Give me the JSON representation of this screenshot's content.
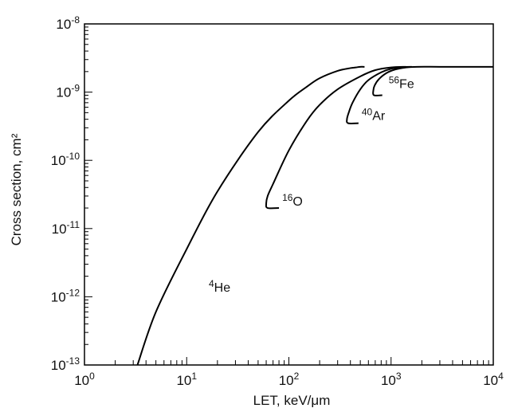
{
  "chart_data": {
    "type": "line",
    "title": "",
    "xlabel": "LET, keV/μm",
    "ylabel": "Cross section, cm²",
    "x_scale": "log",
    "y_scale": "log",
    "xlim": [
      1,
      10000
    ],
    "ylim": [
      1e-13,
      1e-08
    ],
    "grid": false,
    "x_ticks": [
      {
        "value": 1,
        "base": "10",
        "exp": "0"
      },
      {
        "value": 10,
        "base": "10",
        "exp": "1"
      },
      {
        "value": 100,
        "base": "10",
        "exp": "2"
      },
      {
        "value": 1000,
        "base": "10",
        "exp": "3"
      },
      {
        "value": 10000,
        "base": "10",
        "exp": "4"
      }
    ],
    "y_ticks": [
      {
        "value": 1e-13,
        "base": "10",
        "exp": "-13"
      },
      {
        "value": 1e-12,
        "base": "10",
        "exp": "-12"
      },
      {
        "value": 1e-11,
        "base": "10",
        "exp": "-11"
      },
      {
        "value": 1e-10,
        "base": "10",
        "exp": "-10"
      },
      {
        "value": 1e-09,
        "base": "10",
        "exp": "-9"
      },
      {
        "value": 1e-08,
        "base": "10",
        "exp": "-8"
      }
    ],
    "series": [
      {
        "name": "4He",
        "mass": "4",
        "symbol": "He",
        "x": [
          3.3,
          5,
          10,
          20,
          50,
          100,
          150,
          200,
          300,
          400,
          450,
          500,
          550
        ],
        "y": [
          1e-13,
          6e-13,
          5e-12,
          3.5e-11,
          2.6e-10,
          7.5e-10,
          1.2e-09,
          1.6e-09,
          2.05e-09,
          2.25e-09,
          2.3e-09,
          2.35e-09,
          2.35e-09
        ]
      },
      {
        "name": "16O",
        "mass": "16",
        "symbol": "O",
        "x": [
          80,
          62,
          60,
          62,
          70,
          100,
          150,
          200,
          300,
          500,
          700,
          1000,
          1400
        ],
        "y": [
          2e-11,
          2e-11,
          2.3e-11,
          3e-11,
          4.5e-11,
          1.4e-10,
          3.8e-10,
          6.5e-10,
          1.1e-09,
          1.7e-09,
          2.1e-09,
          2.3e-09,
          2.35e-09
        ]
      },
      {
        "name": "40Ar",
        "mass": "40",
        "symbol": "Ar",
        "x": [
          480,
          380,
          370,
          385,
          420,
          500,
          600,
          800,
          1000,
          1300,
          1600
        ],
        "y": [
          3.5e-10,
          3.5e-10,
          4e-10,
          5e-10,
          7e-10,
          1.1e-09,
          1.5e-09,
          1.95e-09,
          2.2e-09,
          2.33e-09,
          2.35e-09
        ]
      },
      {
        "name": "56Fe",
        "mass": "56",
        "symbol": "Fe",
        "x": [
          820,
          680,
          670,
          690,
          760,
          900,
          1100,
          1400,
          1800,
          3000,
          6000,
          10000
        ],
        "y": [
          9e-10,
          9e-10,
          1.05e-09,
          1.25e-09,
          1.55e-09,
          1.9e-09,
          2.15e-09,
          2.3e-09,
          2.35e-09,
          2.35e-09,
          2.35e-09,
          2.35e-09
        ]
      }
    ]
  }
}
